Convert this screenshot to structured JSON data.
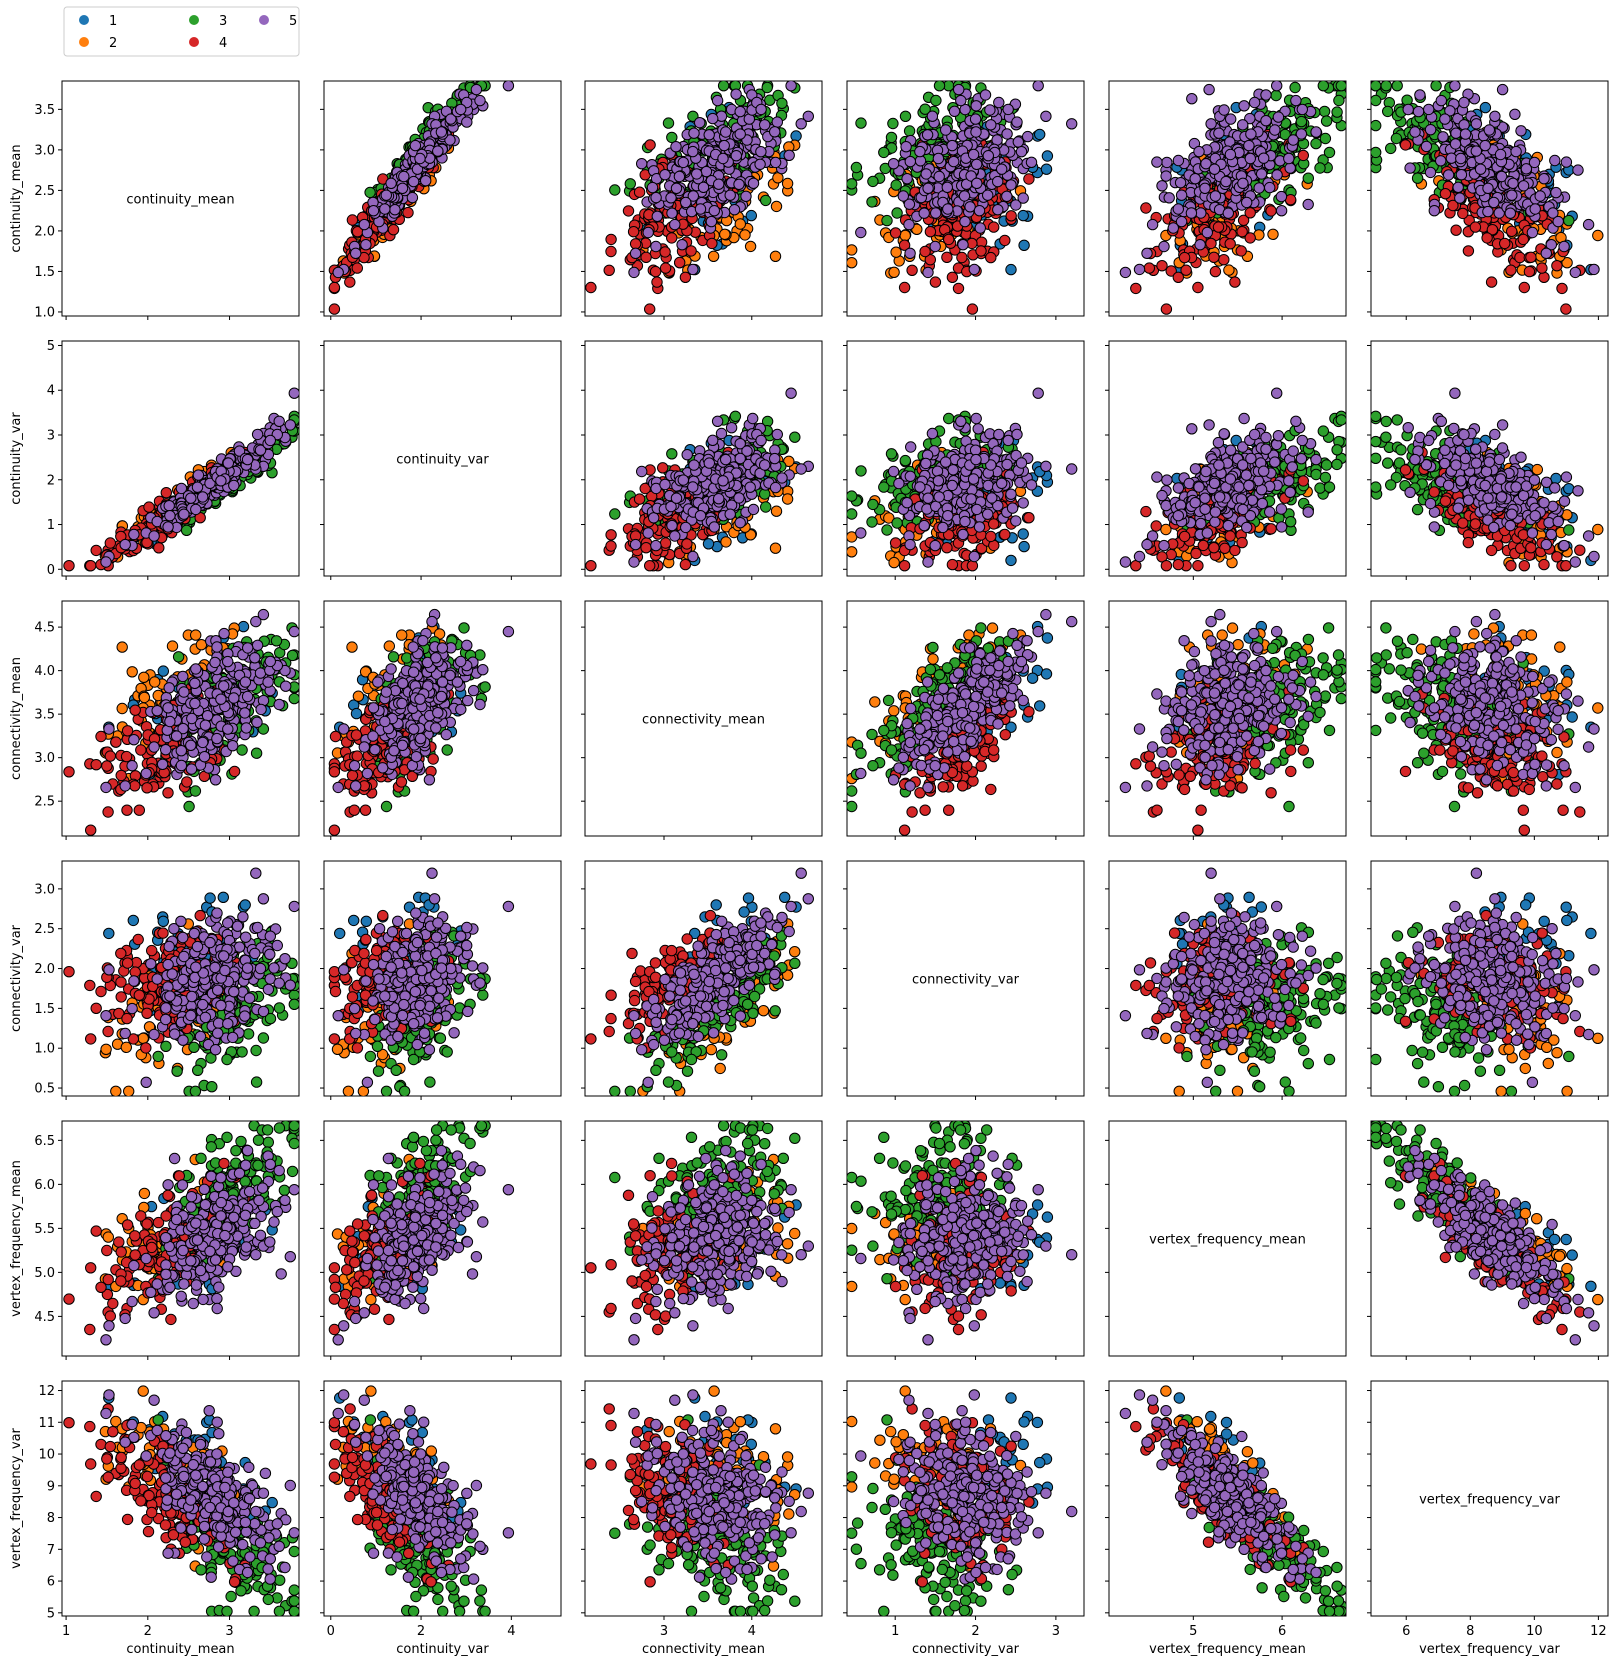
{
  "variables": [
    "continuity_mean",
    "continuity_var",
    "connectivity_mean",
    "connectivity_var",
    "vertex_frequency_mean",
    "vertex_frequency_var"
  ],
  "legend": {
    "placement": "top-left",
    "entries": [
      {
        "label": "1",
        "color": "#1f77b4"
      },
      {
        "label": "2",
        "color": "#ff7f0e"
      },
      {
        "label": "3",
        "color": "#2ca02c"
      },
      {
        "label": "4",
        "color": "#d62728"
      },
      {
        "label": "5",
        "color": "#9467bd"
      }
    ]
  },
  "colors": {
    "marker_edge": "#000000",
    "axes_edge": "#000000",
    "background": "#ffffff"
  },
  "chart_data": {
    "type": "scatter",
    "layout": "pair-plot",
    "grid": false,
    "axes": {
      "continuity_mean": {
        "range": [
          0.95,
          3.85
        ],
        "ticks": [
          1.0,
          1.5,
          2.0,
          2.5,
          3.0,
          3.5
        ],
        "tick_labels": [
          "1.0",
          "1.5",
          "2.0",
          "2.5",
          "3.0",
          "3.5"
        ],
        "x_ticks": [
          1,
          2,
          3
        ],
        "x_tick_labels": [
          "1",
          "2",
          "3"
        ]
      },
      "continuity_var": {
        "range": [
          -0.15,
          5.1
        ],
        "ticks": [
          0,
          1,
          2,
          3,
          4,
          5
        ],
        "tick_labels": [
          "0",
          "1",
          "2",
          "3",
          "4",
          "5"
        ],
        "x_ticks": [
          0,
          2,
          4
        ],
        "x_tick_labels": [
          "0",
          "2",
          "4"
        ]
      },
      "connectivity_mean": {
        "range": [
          2.1,
          4.8
        ],
        "ticks": [
          2.5,
          3.0,
          3.5,
          4.0,
          4.5
        ],
        "tick_labels": [
          "2.5",
          "3.0",
          "3.5",
          "4.0",
          "4.5"
        ],
        "x_ticks": [
          3,
          4
        ],
        "x_tick_labels": [
          "3",
          "4"
        ]
      },
      "connectivity_var": {
        "range": [
          0.4,
          3.35
        ],
        "ticks": [
          0.5,
          1.0,
          1.5,
          2.0,
          2.5,
          3.0
        ],
        "tick_labels": [
          "0.5",
          "1.0",
          "1.5",
          "2.0",
          "2.5",
          "3.0"
        ],
        "x_ticks": [
          1,
          2,
          3
        ],
        "x_tick_labels": [
          "1",
          "2",
          "3"
        ]
      },
      "vertex_frequency_mean": {
        "range": [
          4.05,
          6.72
        ],
        "ticks": [
          4.5,
          5.0,
          5.5,
          6.0,
          6.5
        ],
        "tick_labels": [
          "4.5",
          "5.0",
          "5.5",
          "6.0",
          "6.5"
        ],
        "x_ticks": [
          5,
          6
        ],
        "x_tick_labels": [
          "5",
          "6"
        ]
      },
      "vertex_frequency_var": {
        "range": [
          4.9,
          12.3
        ],
        "ticks": [
          5,
          6,
          7,
          8,
          9,
          10,
          11,
          12
        ],
        "tick_labels": [
          "5",
          "6",
          "7",
          "8",
          "9",
          "10",
          "11",
          "12"
        ],
        "x_ticks": [
          6,
          8,
          10,
          12
        ],
        "x_tick_labels": [
          "6",
          "8",
          "10",
          "12"
        ]
      }
    },
    "series": [
      {
        "name": "1",
        "color": "#1f77b4",
        "centroid": {
          "continuity_mean": 2.6,
          "continuity_var": 1.6,
          "connectivity_mean": 3.6,
          "connectivity_var": 2.2,
          "vertex_frequency_mean": 5.3,
          "vertex_frequency_var": 9.6
        }
      },
      {
        "name": "2",
        "color": "#ff7f0e",
        "centroid": {
          "continuity_mean": 2.2,
          "continuity_var": 1.3,
          "connectivity_mean": 3.7,
          "connectivity_var": 1.5,
          "vertex_frequency_mean": 5.4,
          "vertex_frequency_var": 9.5
        }
      },
      {
        "name": "3",
        "color": "#2ca02c",
        "centroid": {
          "continuity_mean": 3.0,
          "continuity_var": 1.9,
          "connectivity_mean": 3.6,
          "connectivity_var": 1.5,
          "vertex_frequency_mean": 5.9,
          "vertex_frequency_var": 7.2
        }
      },
      {
        "name": "4",
        "color": "#d62728",
        "centroid": {
          "continuity_mean": 2.3,
          "continuity_var": 1.3,
          "connectivity_mean": 3.2,
          "connectivity_var": 1.9,
          "vertex_frequency_mean": 5.3,
          "vertex_frequency_var": 8.6
        }
      },
      {
        "name": "5",
        "color": "#9467bd",
        "centroid": {
          "continuity_mean": 2.8,
          "continuity_var": 1.9,
          "connectivity_mean": 3.6,
          "connectivity_var": 1.9,
          "vertex_frequency_mean": 5.4,
          "vertex_frequency_var": 8.7
        }
      }
    ]
  }
}
